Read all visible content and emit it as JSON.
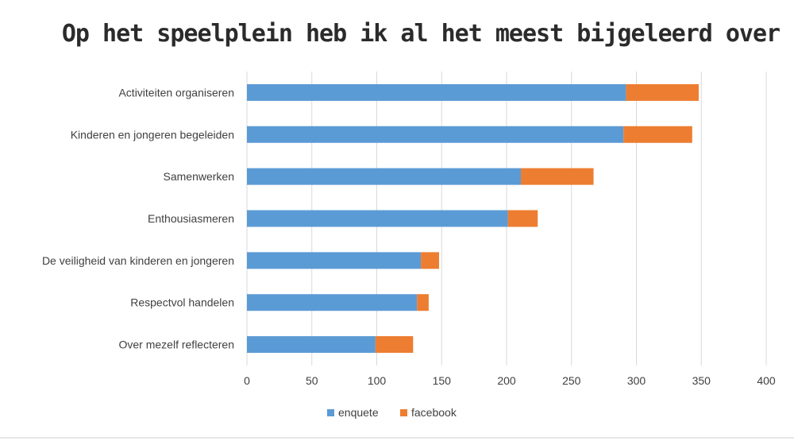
{
  "chart_data": {
    "type": "bar",
    "orientation": "horizontal",
    "stacked": true,
    "title": "Op het speelplein heb ik al het meest bijgeleerd over",
    "categories": [
      "Activiteiten organiseren",
      "Kinderen en jongeren begeleiden",
      "Samenwerken",
      "Enthousiasmeren",
      "De veiligheid van kinderen en jongeren",
      "Respectvol handelen",
      "Over mezelf reflecteren"
    ],
    "series": [
      {
        "name": "enquete",
        "color": "#5b9bd5",
        "values": [
          292,
          290,
          211,
          201,
          134,
          131,
          99
        ]
      },
      {
        "name": "facebook",
        "color": "#ed7d31",
        "values": [
          56,
          53,
          56,
          23,
          14,
          9,
          29
        ]
      }
    ],
    "xlim": [
      0,
      400
    ],
    "xticks": [
      0,
      50,
      100,
      150,
      200,
      250,
      300,
      350,
      400
    ],
    "grid": true,
    "legend": "bottom"
  }
}
